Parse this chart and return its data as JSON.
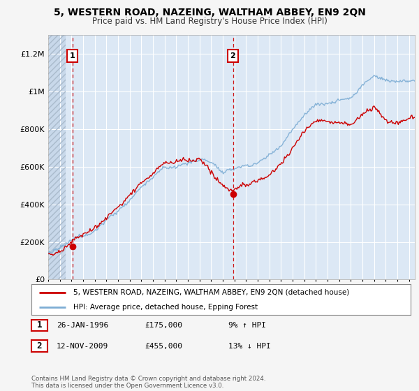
{
  "title": "5, WESTERN ROAD, NAZEING, WALTHAM ABBEY, EN9 2QN",
  "subtitle": "Price paid vs. HM Land Registry's House Price Index (HPI)",
  "legend_line1": "5, WESTERN ROAD, NAZEING, WALTHAM ABBEY, EN9 2QN (detached house)",
  "legend_line2": "HPI: Average price, detached house, Epping Forest",
  "annotation1_label": "1",
  "annotation1_date": "26-JAN-1996",
  "annotation1_price": "£175,000",
  "annotation1_hpi": "9% ↑ HPI",
  "annotation2_label": "2",
  "annotation2_date": "12-NOV-2009",
  "annotation2_price": "£455,000",
  "annotation2_hpi": "13% ↓ HPI",
  "footer": "Contains HM Land Registry data © Crown copyright and database right 2024.\nThis data is licensed under the Open Government Licence v3.0.",
  "sale1_year": 1996.07,
  "sale1_price": 175000,
  "sale2_year": 2009.87,
  "sale2_price": 455000,
  "xmin": 1994,
  "xmax": 2025.5,
  "ymin": 0,
  "ymax": 1300000,
  "hatch_end_year": 1995.5,
  "red_color": "#cc0000",
  "blue_color": "#7dadd4",
  "fig_bg_color": "#f5f5f5",
  "plot_bg_color": "#dce8f5",
  "grid_color": "#ffffff",
  "hatch_fill_color": "#c8d8ea"
}
